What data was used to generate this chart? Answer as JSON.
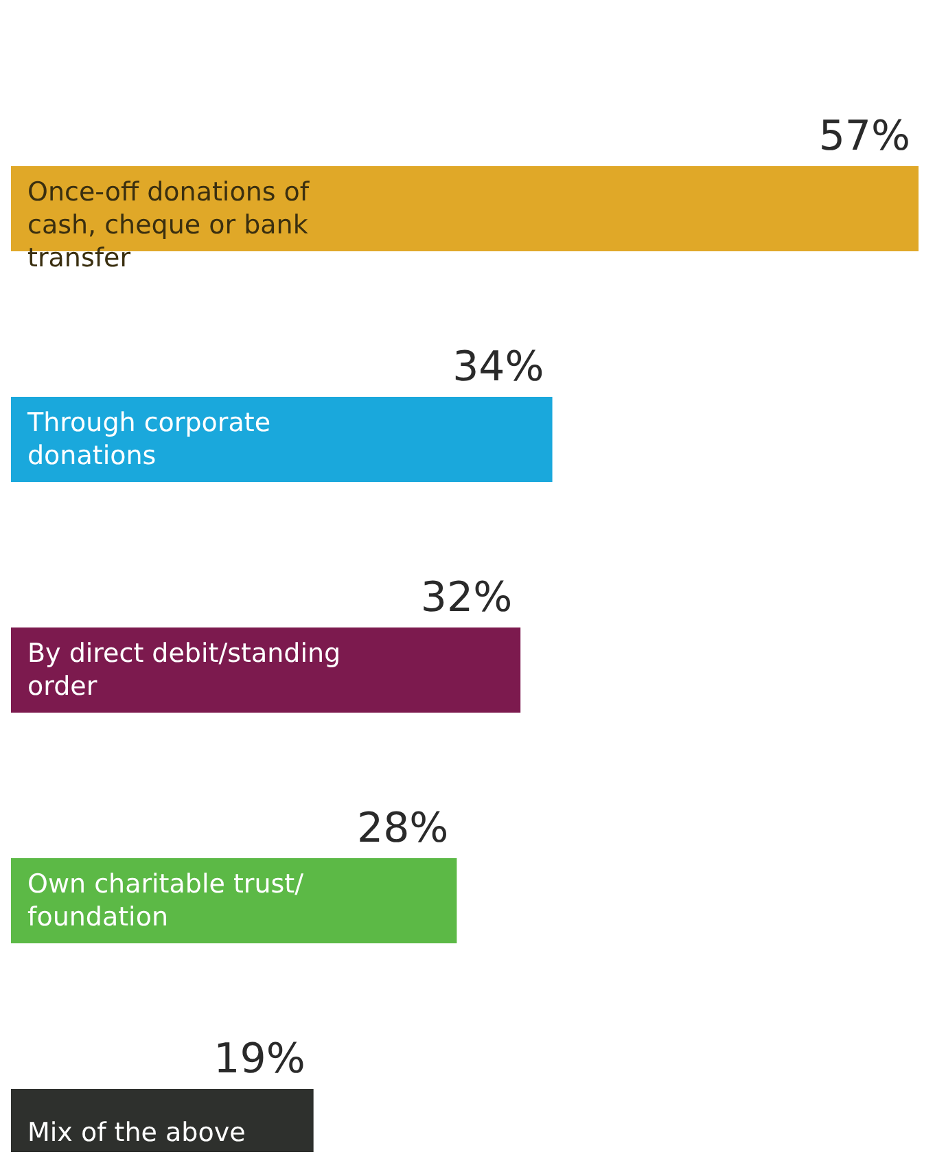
{
  "chart_data": {
    "type": "bar",
    "orientation": "horizontal",
    "categories": [
      "Once-off donations of cash, cheque or bank transfer",
      "Through corporate donations",
      "By direct debit/standing order",
      "Own charitable trust/ foundation",
      "Mix of the above"
    ],
    "values": [
      57,
      34,
      32,
      28,
      19
    ],
    "value_labels": [
      "57%",
      "34%",
      "32%",
      "28%",
      "19%"
    ],
    "colors": [
      "#e0a828",
      "#1aa8dc",
      "#7c1a4e",
      "#5cb946",
      "#2e302d"
    ]
  }
}
